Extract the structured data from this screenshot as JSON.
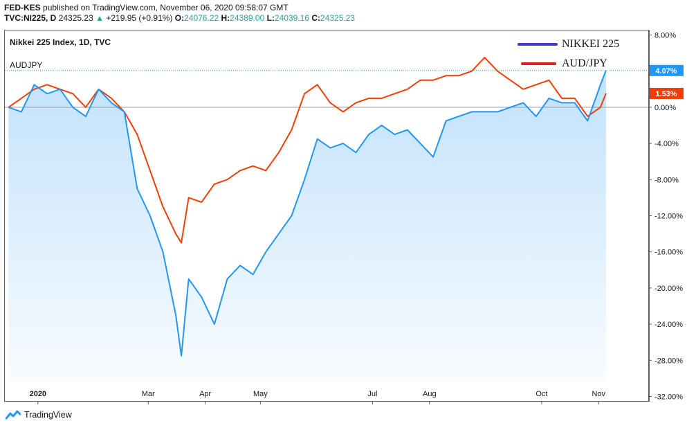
{
  "header": {
    "line1_user": "FED-KES",
    "line1_rest": "published on TradingView.com, November 06, 2020 09:58:07 GMT",
    "symbol": "TVC:NI225, D",
    "price": "24325.23",
    "change": "+219.95 (+0.91%)",
    "o_label": "O:",
    "o_value": "24076.22",
    "h_label": "H:",
    "h_value": "24389.00",
    "l_label": "L:",
    "l_value": "24039.16",
    "c_label": "C:",
    "c_value": "24325.23"
  },
  "pane": {
    "title": "Nikkei 225 Index, 1D, TVC",
    "compare_symbol": "AUDJPY"
  },
  "footer": {
    "brand": "TradingView",
    "logo_icon": "tradingview-logo-icon"
  },
  "colors": {
    "nikkei": "#2196f3",
    "audjpy": "#f23d04",
    "legend_nikkei": "#3c3cc8",
    "legend_audjpy": "#e02020",
    "fill": "#2196f3"
  },
  "chart_data": {
    "type": "line",
    "x": [
      "2019-12-16",
      "2019-12-23",
      "2019-12-30",
      "2020-01-06",
      "2020-01-13",
      "2020-01-20",
      "2020-01-27",
      "2020-02-03",
      "2020-02-10",
      "2020-02-17",
      "2020-02-24",
      "2020-03-02",
      "2020-03-09",
      "2020-03-16",
      "2020-03-19",
      "2020-03-23",
      "2020-03-30",
      "2020-04-06",
      "2020-04-13",
      "2020-04-20",
      "2020-04-27",
      "2020-05-04",
      "2020-05-11",
      "2020-05-18",
      "2020-05-25",
      "2020-06-01",
      "2020-06-08",
      "2020-06-15",
      "2020-06-22",
      "2020-06-29",
      "2020-07-06",
      "2020-07-13",
      "2020-07-20",
      "2020-07-27",
      "2020-08-03",
      "2020-08-10",
      "2020-08-17",
      "2020-08-24",
      "2020-08-31",
      "2020-09-07",
      "2020-09-14",
      "2020-09-21",
      "2020-09-28",
      "2020-10-05",
      "2020-10-12",
      "2020-10-19",
      "2020-10-26",
      "2020-11-02",
      "2020-11-05"
    ],
    "series": [
      {
        "name": "NIKKEI 225",
        "values": [
          0.0,
          -0.5,
          2.5,
          1.5,
          2.0,
          0.0,
          -1.0,
          2.0,
          0.5,
          -0.5,
          -9.0,
          -12.0,
          -16.0,
          -23.0,
          -27.5,
          -19.0,
          -21.0,
          -24.0,
          -19.0,
          -17.5,
          -18.5,
          -16.0,
          -14.0,
          -12.0,
          -8.0,
          -3.5,
          -4.5,
          -4.0,
          -5.0,
          -3.0,
          -2.0,
          -3.0,
          -2.5,
          -4.0,
          -5.5,
          -1.5,
          -1.0,
          -0.5,
          -0.5,
          -0.5,
          0.0,
          0.5,
          -1.0,
          1.0,
          0.5,
          0.5,
          -1.5,
          2.5,
          4.07
        ]
      },
      {
        "name": "AUD/JPY",
        "values": [
          0.0,
          1.0,
          2.0,
          2.5,
          2.0,
          1.5,
          0.0,
          2.0,
          1.0,
          -0.5,
          -3.0,
          -7.0,
          -11.0,
          -14.0,
          -15.0,
          -10.0,
          -10.5,
          -8.5,
          -8.0,
          -7.0,
          -6.5,
          -7.0,
          -5.0,
          -2.5,
          1.5,
          2.5,
          0.5,
          -0.5,
          0.5,
          1.0,
          1.0,
          1.5,
          2.0,
          3.0,
          3.0,
          3.5,
          3.5,
          4.0,
          5.5,
          4.0,
          3.0,
          2.0,
          2.5,
          3.0,
          1.0,
          1.0,
          -1.0,
          0.0,
          1.53
        ]
      }
    ],
    "legend": [
      "NIKKEI 225",
      "AUD/JPY"
    ],
    "legend_position": "top-right",
    "last_value_labels": [
      "4.07%",
      "1.53%"
    ],
    "xtick_labels": [
      "2020",
      "Mar",
      "Apr",
      "May",
      "Jul",
      "Aug",
      "Oct",
      "Nov"
    ],
    "xtick_dates": [
      "2020-01-01",
      "2020-03-01",
      "2020-04-01",
      "2020-05-01",
      "2020-07-01",
      "2020-08-01",
      "2020-10-01",
      "2020-11-01"
    ],
    "ytick_labels": [
      "8.00%",
      "4.00%",
      "0.00%",
      "-4.00%",
      "-8.00%",
      "-12.00%",
      "-16.00%",
      "-20.00%",
      "-24.00%",
      "-28.00%",
      "-32.00%"
    ],
    "ytick_values": [
      8,
      4,
      0,
      -4,
      -8,
      -12,
      -16,
      -20,
      -24,
      -28,
      -32
    ],
    "ylim": [
      -32.5,
      8.5
    ],
    "xlim": [
      "2019-12-14",
      "2020-11-28"
    ],
    "grid": false,
    "ylabel_unit": "%"
  }
}
